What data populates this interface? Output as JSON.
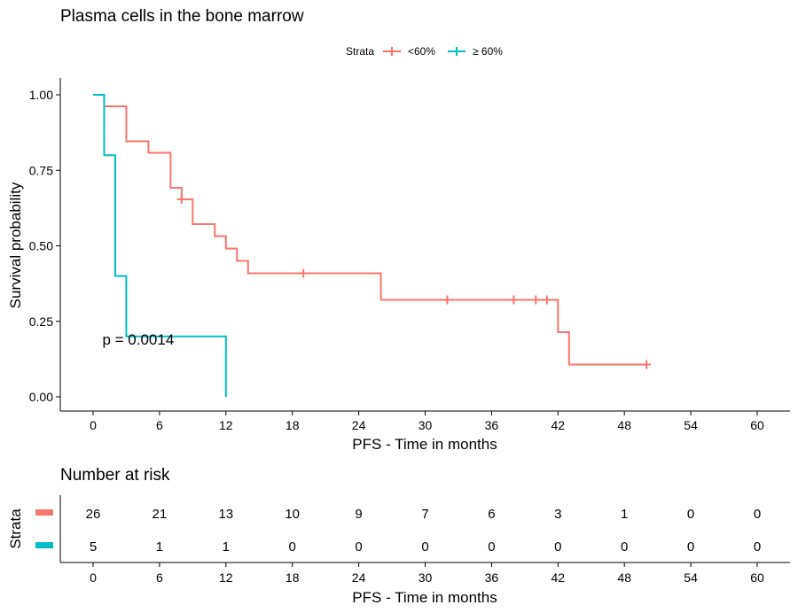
{
  "chart_data": [
    {
      "type": "line",
      "subtype": "kaplan-meier",
      "title": "Plasma cells in the bone marrow",
      "xlabel": "PFS - Time in months",
      "ylabel": "Survival probability",
      "xlim": [
        0,
        60
      ],
      "ylim": [
        0,
        1
      ],
      "x_ticks": [
        0,
        6,
        12,
        18,
        24,
        30,
        36,
        42,
        48,
        54,
        60
      ],
      "y_ticks": [
        0,
        0.25,
        0.5,
        0.75,
        1.0
      ],
      "y_tick_labels": [
        "0.00",
        "0.25",
        "0.50",
        "0.75",
        "1.00"
      ],
      "grid": false,
      "legend": {
        "title": "Strata",
        "position": "top"
      },
      "annotation": "p = 0.0014",
      "annotation_pos": {
        "x": 1,
        "y": 0.19
      },
      "series": [
        {
          "name": "<60%",
          "color": "#F8766D",
          "steps": [
            {
              "x": 0,
              "y": 1.0
            },
            {
              "x": 1,
              "y": 0.962
            },
            {
              "x": 3,
              "y": 0.846
            },
            {
              "x": 5,
              "y": 0.808
            },
            {
              "x": 7,
              "y": 0.692
            },
            {
              "x": 8,
              "y": 0.654
            },
            {
              "x": 9,
              "y": 0.572
            },
            {
              "x": 11,
              "y": 0.532
            },
            {
              "x": 12,
              "y": 0.491
            },
            {
              "x": 13,
              "y": 0.45
            },
            {
              "x": 14,
              "y": 0.409
            },
            {
              "x": 26,
              "y": 0.321
            },
            {
              "x": 42,
              "y": 0.214
            },
            {
              "x": 43,
              "y": 0.107
            }
          ],
          "end_x": 50,
          "censored": [
            {
              "x": 8,
              "y": 0.654
            },
            {
              "x": 19,
              "y": 0.409
            },
            {
              "x": 32,
              "y": 0.321
            },
            {
              "x": 38,
              "y": 0.321
            },
            {
              "x": 40,
              "y": 0.321
            },
            {
              "x": 41,
              "y": 0.321
            },
            {
              "x": 50,
              "y": 0.107
            }
          ]
        },
        {
          "name": "≥ 60%",
          "color": "#00BFC4",
          "steps": [
            {
              "x": 0,
              "y": 1.0
            },
            {
              "x": 1,
              "y": 0.8
            },
            {
              "x": 2,
              "y": 0.4
            },
            {
              "x": 3,
              "y": 0.2
            },
            {
              "x": 12,
              "y": 0.0
            }
          ],
          "end_x": 12,
          "censored": []
        }
      ]
    },
    {
      "type": "table",
      "title": "Number at risk",
      "ylabel": "Strata",
      "xlabel": "PFS - Time in months",
      "x_ticks": [
        0,
        6,
        12,
        18,
        24,
        30,
        36,
        42,
        48,
        54,
        60
      ],
      "rows": [
        {
          "color": "#F8766D",
          "values": [
            26,
            21,
            13,
            10,
            9,
            7,
            6,
            3,
            1,
            0,
            0
          ]
        },
        {
          "color": "#00BFC4",
          "values": [
            5,
            1,
            1,
            0,
            0,
            0,
            0,
            0,
            0,
            0,
            0
          ]
        }
      ]
    }
  ]
}
